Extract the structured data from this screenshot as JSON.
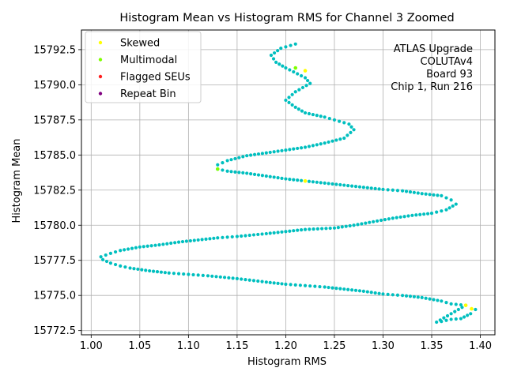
{
  "chart_data": {
    "type": "scatter",
    "title": "Histogram Mean vs Histogram RMS for Channel 3 Zoomed",
    "xlabel": "Histogram RMS",
    "ylabel": "Histogram Mean",
    "xlim": [
      0.99,
      1.415
    ],
    "ylim": [
      15772.2,
      15793.9
    ],
    "xticks": [
      1.0,
      1.05,
      1.1,
      1.15,
      1.2,
      1.25,
      1.3,
      1.35,
      1.4
    ],
    "xtick_labels": [
      "1.00",
      "1.05",
      "1.10",
      "1.15",
      "1.20",
      "1.25",
      "1.30",
      "1.35",
      "1.40"
    ],
    "yticks": [
      15772.5,
      15775.0,
      15777.5,
      15780.0,
      15782.5,
      15785.0,
      15787.5,
      15790.0,
      15792.5
    ],
    "ytick_labels": [
      "15772.5",
      "15775.0",
      "15777.5",
      "15780.0",
      "15782.5",
      "15785.0",
      "15787.5",
      "15790.0",
      "15792.5"
    ],
    "grid": true,
    "legend_position": "top-left",
    "legend": [
      {
        "label": "Skewed",
        "color": "#ffff00"
      },
      {
        "label": "Multimodal",
        "color": "#7fff00"
      },
      {
        "label": "Flagged SEUs",
        "color": "#ff2020"
      },
      {
        "label": "Repeat Bin",
        "color": "#800080"
      }
    ],
    "annotation": [
      "ATLAS Upgrade",
      "COLUTAv4",
      "Board 93",
      "Chip 1, Run 216"
    ],
    "main_color": "#00bfbf",
    "series": [
      {
        "color": "#00bfbf",
        "path": [
          [
            1.395,
            15774.0
          ],
          [
            1.39,
            15773.7
          ],
          [
            1.38,
            15773.35
          ],
          [
            1.37,
            15773.3
          ],
          [
            1.36,
            15773.15
          ],
          [
            1.355,
            15773.1
          ],
          [
            1.385,
            15774.3
          ],
          [
            1.37,
            15774.4
          ],
          [
            1.36,
            15774.6
          ],
          [
            1.34,
            15774.85
          ],
          [
            1.32,
            15775.0
          ],
          [
            1.3,
            15775.1
          ],
          [
            1.28,
            15775.3
          ],
          [
            1.26,
            15775.45
          ],
          [
            1.24,
            15775.6
          ],
          [
            1.22,
            15775.7
          ],
          [
            1.2,
            15775.8
          ],
          [
            1.18,
            15775.95
          ],
          [
            1.15,
            15776.2
          ],
          [
            1.12,
            15776.4
          ],
          [
            1.1,
            15776.5
          ],
          [
            1.08,
            15776.6
          ],
          [
            1.06,
            15776.75
          ],
          [
            1.04,
            15776.95
          ],
          [
            1.03,
            15777.1
          ],
          [
            1.02,
            15777.3
          ],
          [
            1.012,
            15777.55
          ],
          [
            1.01,
            15777.75
          ],
          [
            1.02,
            15778.0
          ],
          [
            1.03,
            15778.2
          ],
          [
            1.05,
            15778.45
          ],
          [
            1.07,
            15778.6
          ],
          [
            1.09,
            15778.8
          ],
          [
            1.11,
            15778.95
          ],
          [
            1.13,
            15779.1
          ],
          [
            1.15,
            15779.2
          ],
          [
            1.18,
            15779.4
          ],
          [
            1.2,
            15779.55
          ],
          [
            1.22,
            15779.7
          ],
          [
            1.25,
            15779.8
          ],
          [
            1.27,
            15780.0
          ],
          [
            1.29,
            15780.25
          ],
          [
            1.31,
            15780.5
          ],
          [
            1.33,
            15780.7
          ],
          [
            1.35,
            15780.85
          ],
          [
            1.365,
            15781.1
          ],
          [
            1.375,
            15781.5
          ],
          [
            1.37,
            15781.8
          ],
          [
            1.36,
            15782.1
          ],
          [
            1.34,
            15782.25
          ],
          [
            1.32,
            15782.45
          ],
          [
            1.3,
            15782.55
          ],
          [
            1.28,
            15782.7
          ],
          [
            1.26,
            15782.85
          ],
          [
            1.24,
            15783.0
          ],
          [
            1.22,
            15783.15
          ],
          [
            1.2,
            15783.3
          ],
          [
            1.18,
            15783.5
          ],
          [
            1.16,
            15783.7
          ],
          [
            1.14,
            15783.85
          ],
          [
            1.13,
            15784.0
          ],
          [
            1.13,
            15784.3
          ],
          [
            1.14,
            15784.6
          ],
          [
            1.16,
            15784.95
          ],
          [
            1.18,
            15785.15
          ],
          [
            1.2,
            15785.35
          ],
          [
            1.22,
            15785.55
          ],
          [
            1.24,
            15785.85
          ],
          [
            1.26,
            15786.2
          ],
          [
            1.27,
            15786.8
          ],
          [
            1.265,
            15787.2
          ],
          [
            1.25,
            15787.5
          ],
          [
            1.24,
            15787.7
          ],
          [
            1.22,
            15788.0
          ],
          [
            1.21,
            15788.4
          ],
          [
            1.2,
            15788.9
          ],
          [
            1.21,
            15789.5
          ],
          [
            1.225,
            15790.1
          ],
          [
            1.22,
            15790.5
          ],
          [
            1.2,
            15791.2
          ],
          [
            1.19,
            15791.6
          ],
          [
            1.185,
            15792.1
          ],
          [
            1.195,
            15792.6
          ],
          [
            1.21,
            15792.9
          ]
        ]
      }
    ],
    "highlight_points": [
      {
        "color": "#ffff00",
        "x": 1.391,
        "y": 15774.05
      },
      {
        "color": "#ffff00",
        "x": 1.385,
        "y": 15774.3
      },
      {
        "color": "#ffff00",
        "x": 1.22,
        "y": 15791.0
      },
      {
        "color": "#ffff00",
        "x": 1.22,
        "y": 15783.15
      },
      {
        "color": "#7fff00",
        "x": 1.13,
        "y": 15784.0
      },
      {
        "color": "#7fff00",
        "x": 1.21,
        "y": 15791.2
      }
    ]
  }
}
